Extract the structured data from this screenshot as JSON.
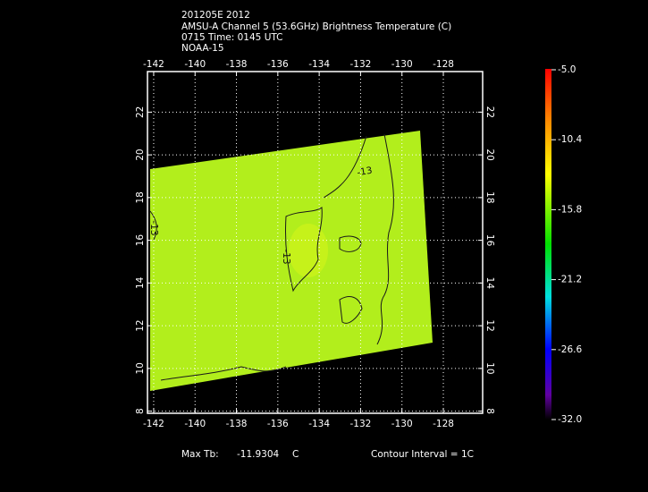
{
  "header": {
    "lines": [
      "201205E 2012",
      "AMSU-A Channel 5 (53.6GHz) Brightness Temperature (C)",
      "0715 Time: 0145 UTC",
      "NOAA-15"
    ]
  },
  "map": {
    "lonlim": [
      -142.3,
      -126.1
    ],
    "latlim": [
      7.9,
      23.9
    ],
    "lon_ticks": [
      -142,
      -140,
      -138,
      -136,
      -134,
      -132,
      -130,
      -128
    ],
    "lat_ticks": [
      8,
      10,
      12,
      14,
      16,
      18,
      20,
      22
    ],
    "contour_label": "-13"
  },
  "colorbar": {
    "ticks": [
      {
        "value": -5,
        "label": "-5.0"
      },
      {
        "value": -10.4,
        "label": "-10.4"
      },
      {
        "value": -15.8,
        "label": "-15.8"
      },
      {
        "value": -21.2,
        "label": "-21.2"
      },
      {
        "value": -26.6,
        "label": "-26.6"
      },
      {
        "value": -32,
        "label": "-32.0"
      }
    ]
  },
  "footer": {
    "max_label": "Max Tb:",
    "max_value": -11.9304,
    "max_unit": "C",
    "contour_interval": "Contour Interval = 1C"
  }
}
